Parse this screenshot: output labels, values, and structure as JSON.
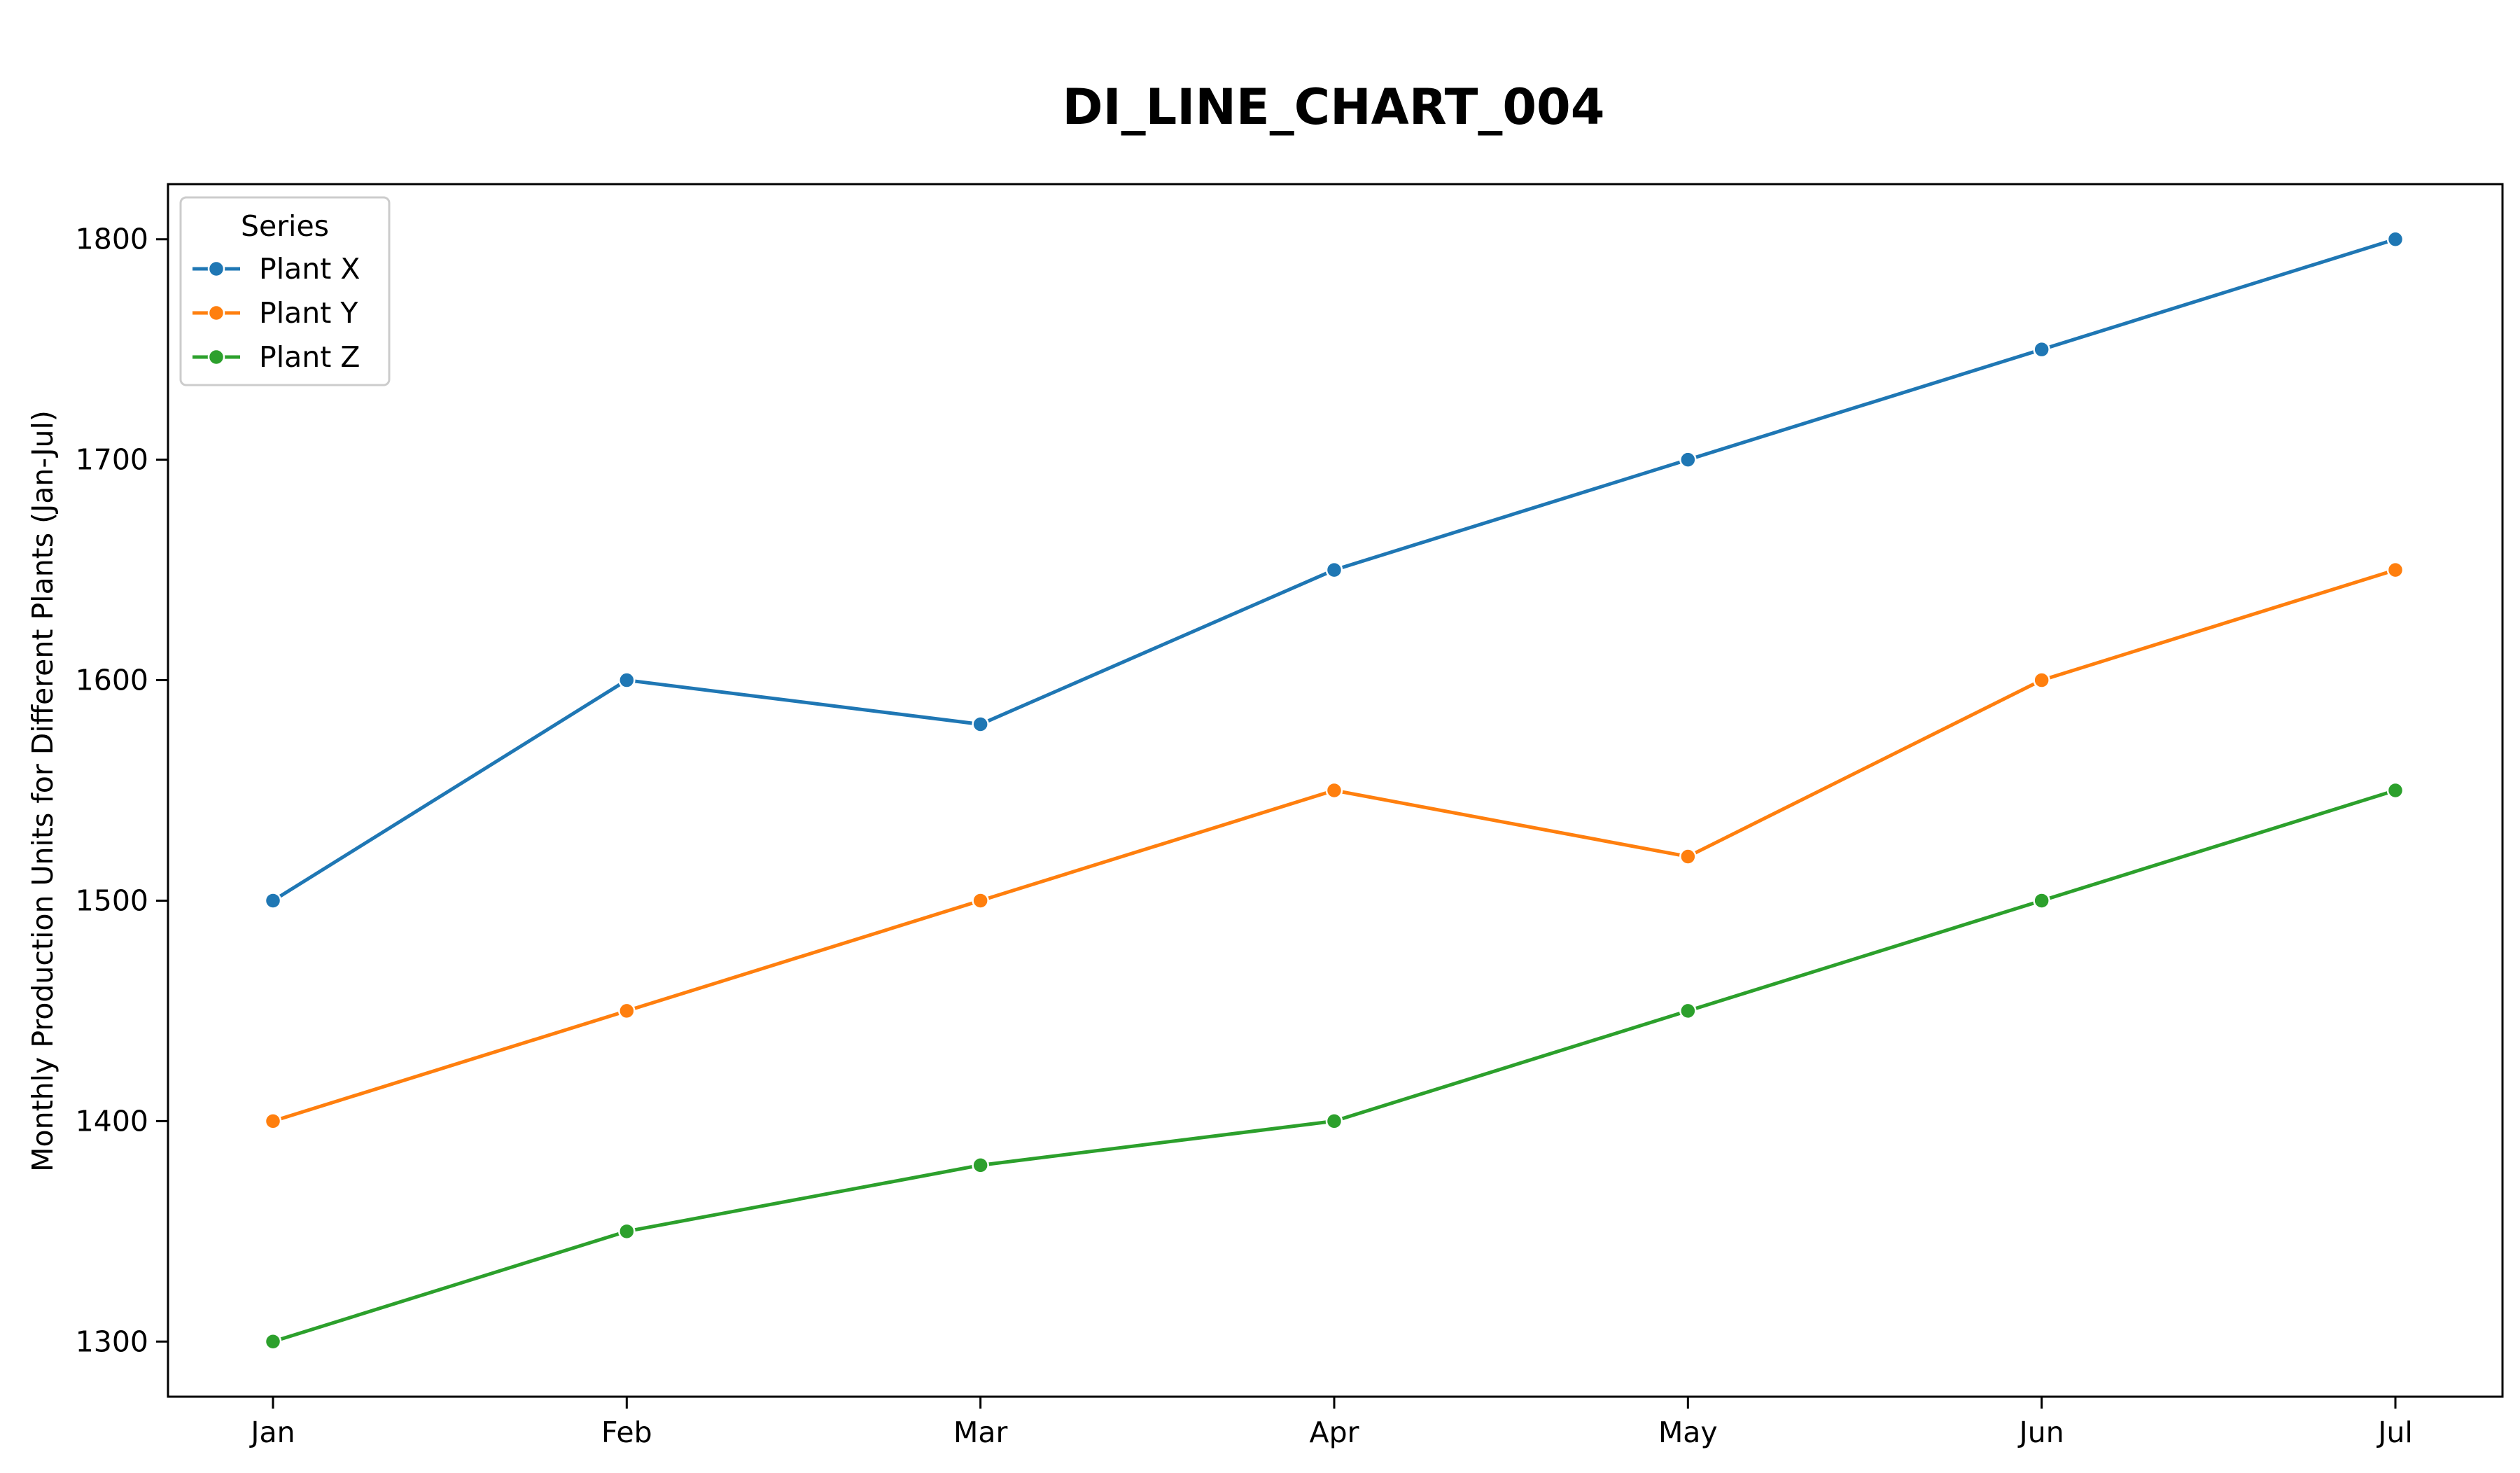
{
  "chart_data": {
    "type": "line",
    "title": "DI_LINE_CHART_004",
    "xlabel": "",
    "ylabel": "Monthly Production Units for Different Plants (Jan-Jul)",
    "categories": [
      "Jan",
      "Feb",
      "Mar",
      "Apr",
      "May",
      "Jun",
      "Jul"
    ],
    "ylim": [
      1275,
      1825
    ],
    "yticks": [
      1300,
      1400,
      1500,
      1600,
      1700,
      1800
    ],
    "grid": false,
    "markers": true,
    "legend": {
      "title": "Series",
      "position": "top-left"
    },
    "series": [
      {
        "name": "Plant X",
        "color": "#1f77b4",
        "values": [
          1500,
          1600,
          1580,
          1650,
          1700,
          1750,
          1800
        ]
      },
      {
        "name": "Plant Y",
        "color": "#ff7f0e",
        "values": [
          1400,
          1450,
          1500,
          1550,
          1520,
          1600,
          1650
        ]
      },
      {
        "name": "Plant Z",
        "color": "#2ca02c",
        "values": [
          1300,
          1350,
          1380,
          1400,
          1450,
          1500,
          1550
        ]
      }
    ]
  }
}
